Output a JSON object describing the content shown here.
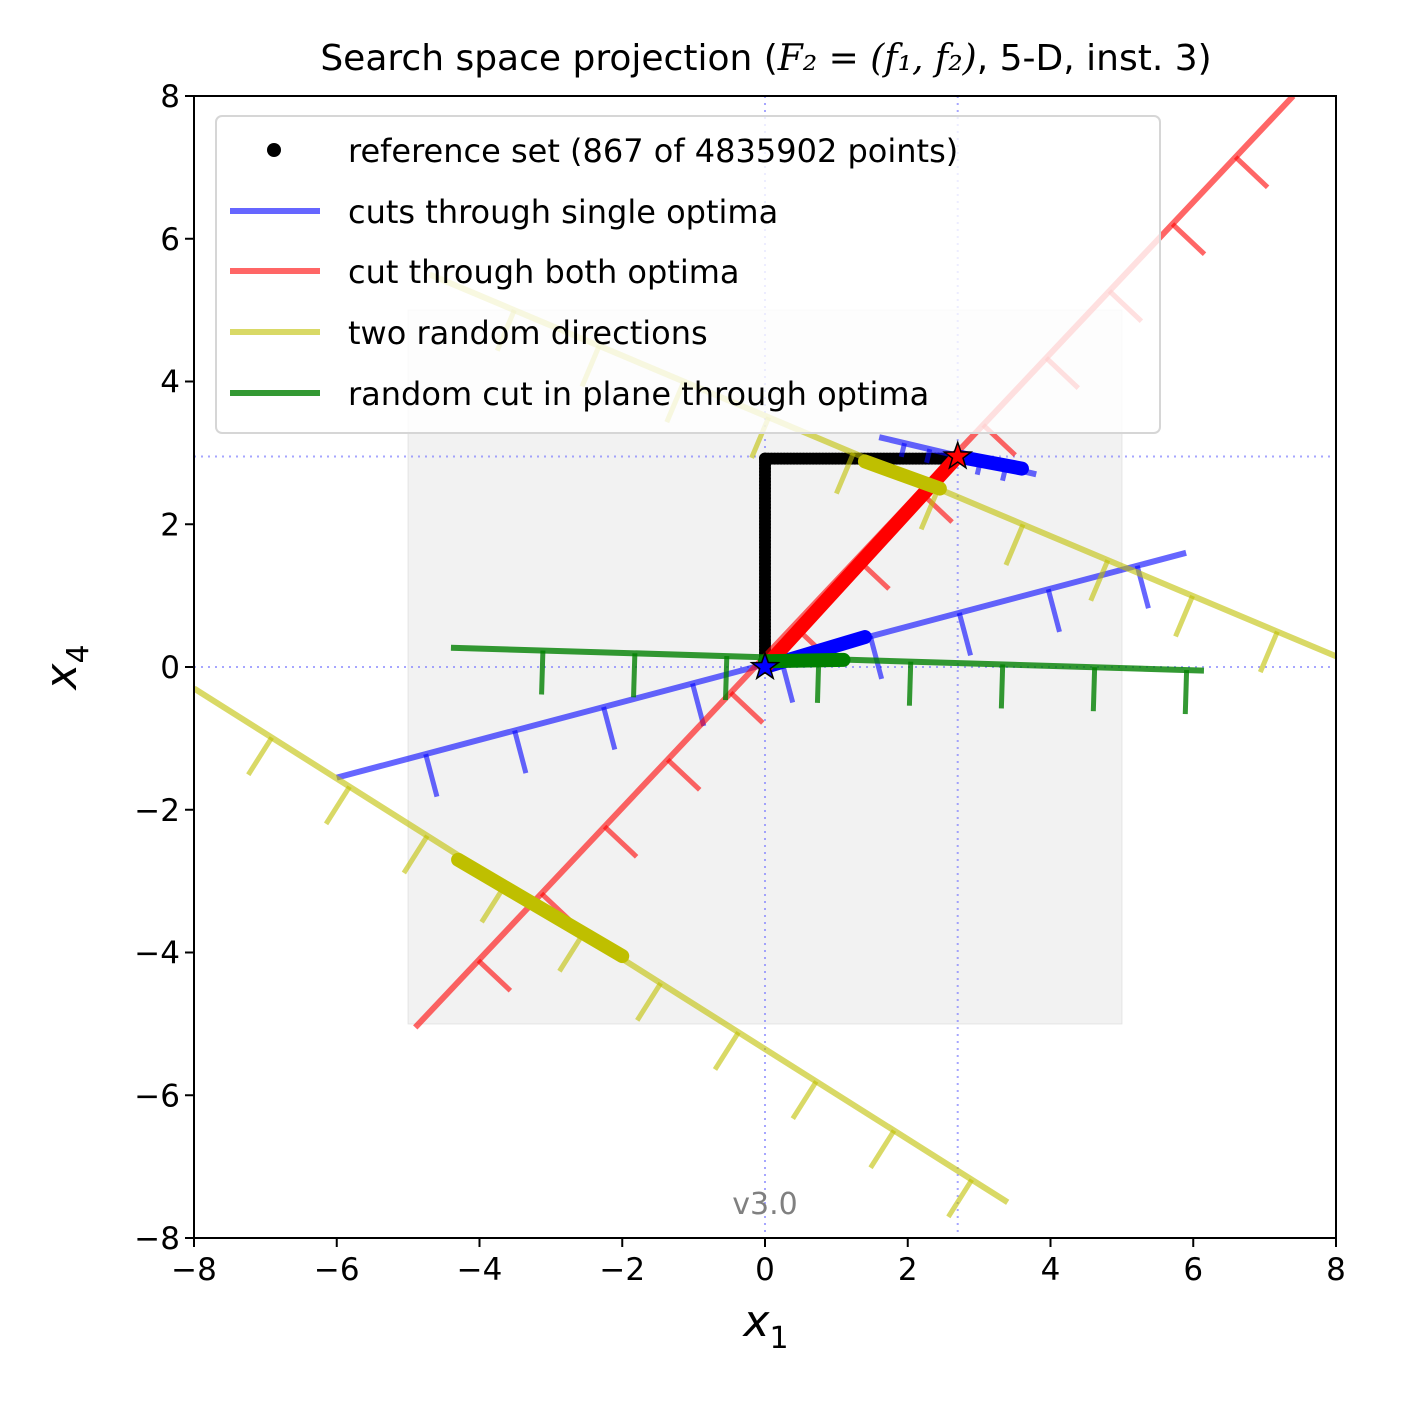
{
  "chart_data": {
    "type": "line",
    "title_prefix": "Search space projection (",
    "title_math": "F₂ = (f₁, f₂)",
    "title_suffix": ", 5-D, inst. 3)",
    "xlabel": "x",
    "xlabel_sub": "1",
    "ylabel": "x",
    "ylabel_sub": "4",
    "xlim": [
      -8,
      8
    ],
    "ylim": [
      -8,
      8
    ],
    "xticks": [
      -8,
      -6,
      -4,
      -2,
      0,
      2,
      4,
      6,
      8
    ],
    "yticks": [
      -8,
      -6,
      -4,
      -2,
      0,
      2,
      4,
      6,
      8
    ],
    "tick_labels_x": [
      "−8",
      "−6",
      "−4",
      "−2",
      "0",
      "2",
      "4",
      "6",
      "8"
    ],
    "tick_labels_y": [
      "−8",
      "−6",
      "−4",
      "−2",
      "0",
      "2",
      "4",
      "6",
      "8"
    ],
    "grid": false,
    "legend_position": "top-left",
    "watermark": "v3.0",
    "region_of_interest": {
      "x": [
        -5,
        5
      ],
      "y": [
        -5,
        5
      ],
      "color": "#f2f2f2"
    },
    "optima": [
      {
        "name": "optimum f1",
        "x": 0.0,
        "y": 0.0,
        "color": "#0000ff"
      },
      {
        "name": "optimum f2",
        "x": 2.7,
        "y": 2.95,
        "color": "#ff0000"
      }
    ],
    "reference_set": {
      "legend": "reference set (867 of 4835902 points)",
      "color": "#000000",
      "polyline": [
        [
          0,
          0.15
        ],
        [
          0,
          2.92
        ],
        [
          2.7,
          2.92
        ]
      ]
    },
    "series": [
      {
        "name": "cuts through single optima",
        "color": "#0000ff",
        "lines": [
          {
            "x": [
              -6.0,
              5.9
            ],
            "y": [
              -1.55,
              1.6
            ]
          },
          {
            "x": [
              1.6,
              3.8
            ],
            "y": [
              3.22,
              2.7
            ]
          }
        ],
        "bold": [
          {
            "x": [
              0.0,
              1.4
            ],
            "y": [
              0.0,
              0.42
            ]
          },
          {
            "x": [
              2.7,
              3.6
            ],
            "y": [
              2.95,
              2.78
            ]
          }
        ]
      },
      {
        "name": "cut through both optima",
        "color": "#ff0000",
        "lines": [
          {
            "x": [
              -4.9,
              7.4
            ],
            "y": [
              -5.05,
              8.0
            ]
          }
        ],
        "bold": [
          {
            "x": [
              0.0,
              2.7
            ],
            "y": [
              0.0,
              2.95
            ]
          }
        ]
      },
      {
        "name": "two random directions",
        "color": "#bfbf00",
        "lines": [
          {
            "x": [
              -4.7,
              8.0
            ],
            "y": [
              5.5,
              0.15
            ]
          },
          {
            "x": [
              -8.0,
              3.4
            ],
            "y": [
              -0.3,
              -7.5
            ]
          }
        ],
        "bold": [
          {
            "x": [
              1.4,
              2.45
            ],
            "y": [
              2.88,
              2.5
            ]
          },
          {
            "x": [
              -4.3,
              -2.0
            ],
            "y": [
              -2.7,
              -4.05
            ]
          }
        ]
      },
      {
        "name": "random cut in plane through optima",
        "color": "#008000",
        "lines": [
          {
            "x": [
              -4.4,
              6.15
            ],
            "y": [
              0.27,
              -0.05
            ]
          }
        ],
        "bold": [
          {
            "x": [
              0.0,
              1.1
            ],
            "y": [
              0.08,
              0.1
            ]
          }
        ]
      }
    ]
  }
}
